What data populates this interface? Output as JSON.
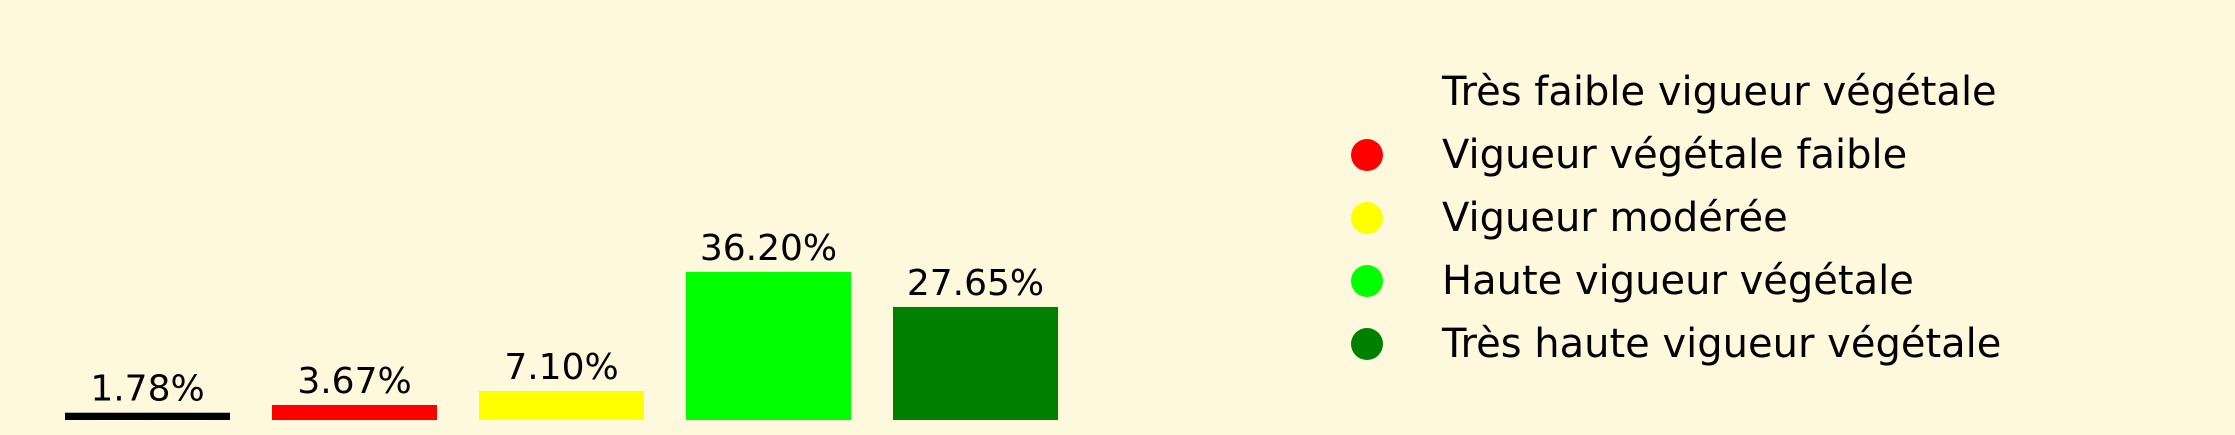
{
  "chart_data": {
    "type": "bar",
    "categories": [
      "Très faible vigueur végétale",
      "Vigueur végétale faible",
      "Vigueur modérée",
      "Haute vigueur végétale",
      "Très haute vigueur végétale"
    ],
    "values": [
      1.78,
      3.67,
      7.1,
      36.2,
      27.65
    ],
    "value_labels": [
      "1.78%",
      "3.67%",
      "7.10%",
      "36.20%",
      "27.65%"
    ],
    "colors": [
      "#000000",
      "#ff0000",
      "#ffff00",
      "#00ff00",
      "#008000"
    ],
    "ylim": [
      0,
      36.2
    ],
    "grid": false,
    "legend_position": "right",
    "legend_colors": [
      "none",
      "#ff0000",
      "#ffff00",
      "#00ff00",
      "#008000"
    ],
    "background": "#fef8dc"
  }
}
